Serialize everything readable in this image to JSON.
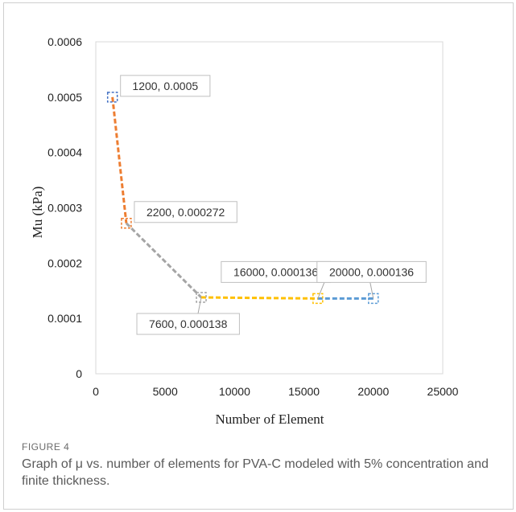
{
  "chart_data": {
    "type": "line",
    "xlabel": "Number of Element",
    "ylabel": "Mu (kPa)",
    "xlim": [
      0,
      25000
    ],
    "ylim": [
      0,
      0.0006
    ],
    "x_ticks": [
      "0",
      "5000",
      "10000",
      "15000",
      "20000",
      "25000"
    ],
    "y_ticks": [
      "0",
      "0.0001",
      "0.0002",
      "0.0003",
      "0.0004",
      "0.0005",
      "0.0006"
    ],
    "grid": false,
    "points": [
      {
        "x": 1200,
        "y": 0.0005,
        "label": "1200, 0.0005",
        "color": "#4472c4"
      },
      {
        "x": 2200,
        "y": 0.000272,
        "label": "2200, 0.000272",
        "color": "#ed7d31"
      },
      {
        "x": 7600,
        "y": 0.000138,
        "label": "7600, 0.000138",
        "color": "#a5a5a5"
      },
      {
        "x": 16000,
        "y": 0.000136,
        "label": "16000, 0.000136",
        "color": "#ffc000"
      },
      {
        "x": 20000,
        "y": 0.000136,
        "label": "20000, 0.000136",
        "color": "#5b9bd5"
      }
    ],
    "segment_colors": [
      "#ed7d31",
      "#a5a5a5",
      "#ffc000",
      "#5b9bd5"
    ]
  },
  "caption": {
    "label": "FIGURE 4",
    "text": "Graph of μ vs. number of elements for PVA-C modeled with 5% concentration and finite thickness."
  }
}
